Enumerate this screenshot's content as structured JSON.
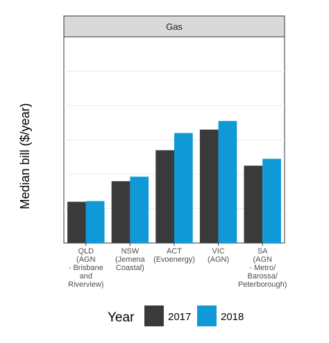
{
  "chart_data": {
    "type": "bar",
    "facet": "Gas",
    "ylabel": "Median bill ($/year)",
    "ylim": [
      0,
      6
    ],
    "y_tick_labels_shown": false,
    "grid": true,
    "legend_position": "bottom",
    "legend_title": "Year",
    "categories": [
      [
        "QLD",
        "(AGN",
        "- Brisbane",
        "and",
        "Riverview)"
      ],
      [
        "NSW",
        "(Jemena",
        "Coastal)"
      ],
      [
        "ACT",
        "(Evoenergy)"
      ],
      [
        "VIC",
        "(AGN)"
      ],
      [
        "SA",
        "(AGN",
        "- Metro/",
        "Barossa/",
        "Peterborough)"
      ]
    ],
    "series": [
      {
        "name": "2017",
        "color": "#3a3a3a",
        "values": [
          1.2,
          1.8,
          2.7,
          3.3,
          2.25
        ]
      },
      {
        "name": "2018",
        "color": "#0f99d6",
        "values": [
          1.22,
          1.93,
          3.2,
          3.55,
          2.45
        ]
      }
    ]
  }
}
